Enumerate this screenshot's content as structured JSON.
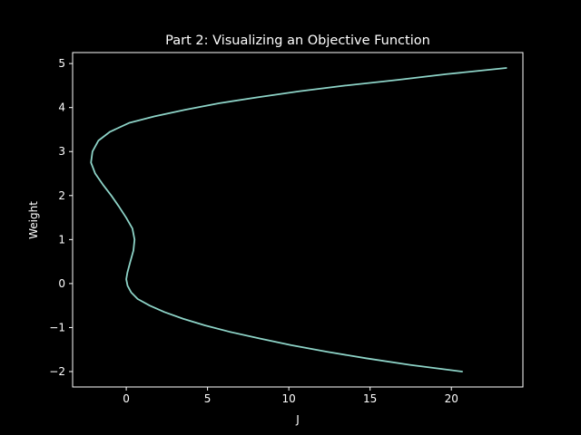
{
  "chart_data": {
    "type": "line",
    "title": "Part 2: Visualizing an Objective Function",
    "xlabel": "J",
    "ylabel": "Weight",
    "xlim": [
      -3.3,
      24.4
    ],
    "ylim": [
      -2.35,
      5.25
    ],
    "xticks": [
      0,
      5,
      10,
      15,
      20
    ],
    "yticks": [
      -2,
      -1,
      0,
      1,
      2,
      3,
      4,
      5
    ],
    "xtick_labels": [
      "0",
      "5",
      "10",
      "15",
      "20"
    ],
    "ytick_labels": [
      "−2",
      "−1",
      "0",
      "1",
      "2",
      "3",
      "4",
      "5"
    ],
    "grid": false,
    "series": [
      {
        "color": "#8dd3c7",
        "x": [
          20.66,
          17.5,
          14.79,
          12.34,
          10.15,
          8.24,
          6.4,
          4.83,
          3.5,
          2.36,
          1.44,
          0.7,
          0.3,
          0.08,
          0.0,
          0.07,
          0.25,
          0.44,
          0.51,
          0.38,
          -0.01,
          -0.45,
          -0.92,
          -1.44,
          -1.91,
          -2.17,
          -2.08,
          -1.71,
          -1.0,
          0.17,
          1.74,
          3.62,
          5.73,
          8.03,
          10.63,
          13.48,
          16.71,
          19.72,
          23.38
        ],
        "y": [
          -2.0,
          -1.85,
          -1.7,
          -1.55,
          -1.4,
          -1.25,
          -1.1,
          -0.95,
          -0.8,
          -0.65,
          -0.5,
          -0.35,
          -0.2,
          -0.05,
          0.1,
          0.25,
          0.5,
          0.75,
          1.0,
          1.25,
          1.5,
          1.75,
          2.0,
          2.25,
          2.5,
          2.75,
          3.0,
          3.25,
          3.45,
          3.65,
          3.8,
          3.95,
          4.1,
          4.23,
          4.37,
          4.5,
          4.63,
          4.76,
          4.9
        ]
      }
    ]
  }
}
